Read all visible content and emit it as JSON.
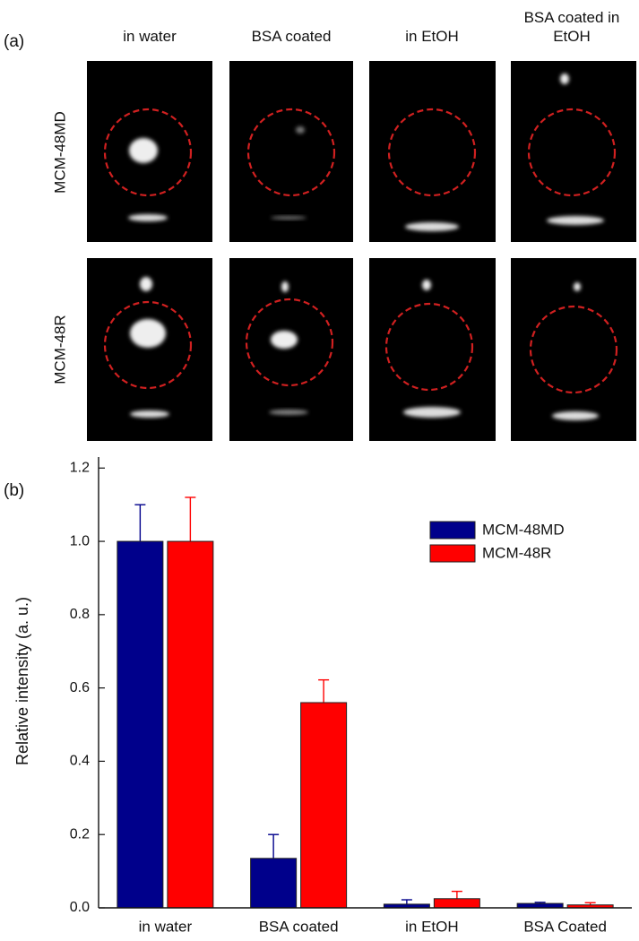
{
  "panel_a": {
    "label": "(a)",
    "columns": [
      "in water",
      "BSA coated",
      "in EtOH",
      "BSA coated in EtOH"
    ],
    "rows": [
      "MCM-48MD",
      "MCM-48R"
    ]
  },
  "chart_data": {
    "type": "bar",
    "panel_label": "(b)",
    "ylabel": "Relative intensity (a. u.)",
    "categories": [
      "in water",
      "BSA coated",
      "in EtOH",
      "BSA Coated"
    ],
    "series": [
      {
        "name": "MCM-48MD",
        "color": "#00008b",
        "values": [
          1.0,
          0.135,
          0.01,
          0.012
        ],
        "errors": [
          0.1,
          0.065,
          0.012,
          0.003
        ]
      },
      {
        "name": "MCM-48R",
        "color": "#ff0000",
        "values": [
          1.0,
          0.56,
          0.025,
          0.008
        ],
        "errors": [
          0.12,
          0.062,
          0.02,
          0.006
        ]
      }
    ],
    "ylim": [
      0,
      1.23
    ],
    "yticks": [
      {
        "value": 0,
        "label": "0.0"
      },
      0.2,
      0.4,
      0.6,
      0.8,
      {
        "value": 1,
        "label": "1.0"
      },
      1.2
    ],
    "legend": "upper-right"
  }
}
